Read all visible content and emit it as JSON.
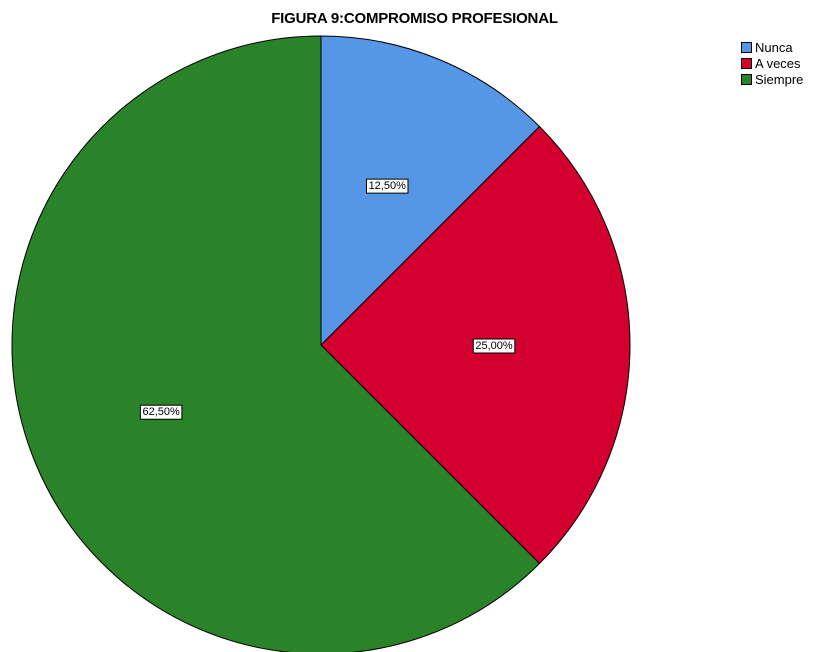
{
  "chart_data": {
    "type": "pie",
    "title": "FIGURA 9:COMPROMISO PROFESIONAL",
    "categories": [
      "Nunca",
      "A veces",
      "Siempre"
    ],
    "values": [
      12.5,
      25.0,
      62.5
    ],
    "labels": [
      "12,50%",
      "25,00%",
      "62,50%"
    ],
    "colors": [
      "#5596e6",
      "#d3002f",
      "#2a8229"
    ],
    "start_angle_deg": 0,
    "direction": "clockwise",
    "legend_position": "top-right"
  }
}
